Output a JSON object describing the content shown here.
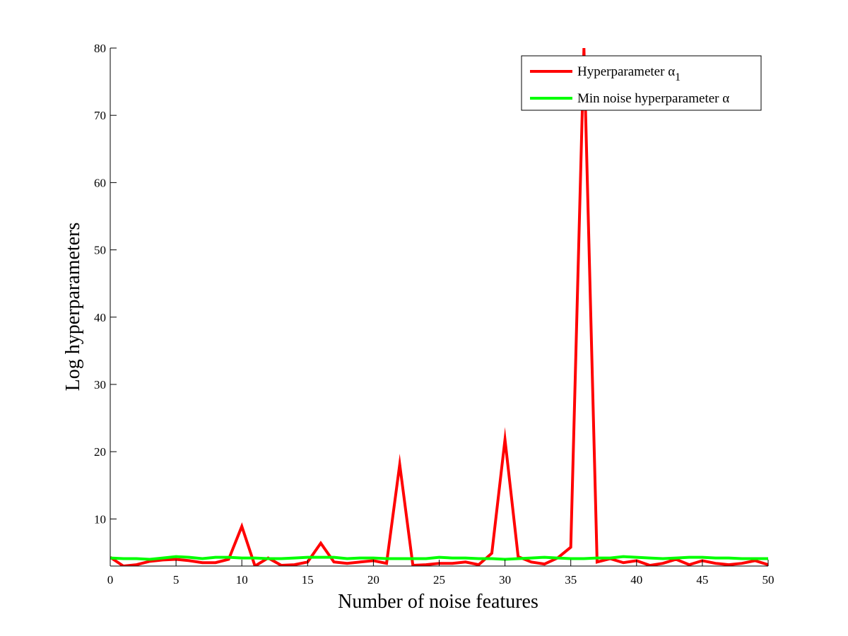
{
  "chart_data": {
    "type": "line",
    "title": "",
    "xlabel": "Number of noise features",
    "ylabel": "Log hyperparameters",
    "xlim": [
      0,
      50
    ],
    "ylim": [
      3,
      80
    ],
    "xticks": [
      0,
      5,
      10,
      15,
      20,
      25,
      30,
      35,
      40,
      45,
      50
    ],
    "yticks": [
      10,
      20,
      30,
      40,
      50,
      60,
      70,
      80
    ],
    "grid": false,
    "legend_position": "top-right",
    "x": [
      0,
      1,
      2,
      3,
      4,
      5,
      6,
      7,
      8,
      9,
      10,
      11,
      12,
      13,
      14,
      15,
      16,
      17,
      18,
      19,
      20,
      21,
      22,
      23,
      24,
      25,
      26,
      27,
      28,
      29,
      30,
      31,
      32,
      33,
      34,
      35,
      36,
      37,
      38,
      39,
      40,
      41,
      42,
      43,
      44,
      45,
      46,
      47,
      48,
      49,
      50
    ],
    "series": [
      {
        "name": "Hyperparameter",
        "subscript": "1",
        "symbol": "α",
        "color": "#ff0000",
        "values": [
          4.3,
          3.0,
          3.2,
          3.7,
          3.9,
          4.0,
          3.8,
          3.5,
          3.5,
          4.0,
          8.9,
          3.0,
          4.2,
          3.1,
          3.2,
          3.6,
          6.4,
          3.6,
          3.4,
          3.6,
          3.8,
          3.4,
          18.1,
          3.1,
          3.2,
          3.4,
          3.4,
          3.6,
          3.2,
          4.9,
          21.8,
          4.4,
          3.6,
          3.3,
          4.2,
          5.8,
          80.0,
          3.6,
          4.1,
          3.5,
          3.8,
          3.1,
          3.4,
          4.0,
          3.2,
          3.8,
          3.4,
          3.2,
          3.4,
          3.8,
          3.2
        ]
      },
      {
        "name": "Min noise hyperparameter",
        "symbol": "α",
        "color": "#00ff00",
        "values": [
          4.2,
          4.1,
          4.1,
          4.0,
          4.2,
          4.4,
          4.3,
          4.1,
          4.3,
          4.3,
          4.2,
          4.2,
          4.1,
          4.1,
          4.2,
          4.3,
          4.3,
          4.3,
          4.1,
          4.2,
          4.2,
          4.1,
          4.1,
          4.1,
          4.1,
          4.3,
          4.2,
          4.2,
          4.1,
          4.1,
          4.0,
          4.1,
          4.2,
          4.3,
          4.2,
          4.1,
          4.1,
          4.2,
          4.2,
          4.4,
          4.3,
          4.2,
          4.1,
          4.2,
          4.3,
          4.3,
          4.2,
          4.2,
          4.1,
          4.1,
          4.1
        ]
      }
    ]
  }
}
